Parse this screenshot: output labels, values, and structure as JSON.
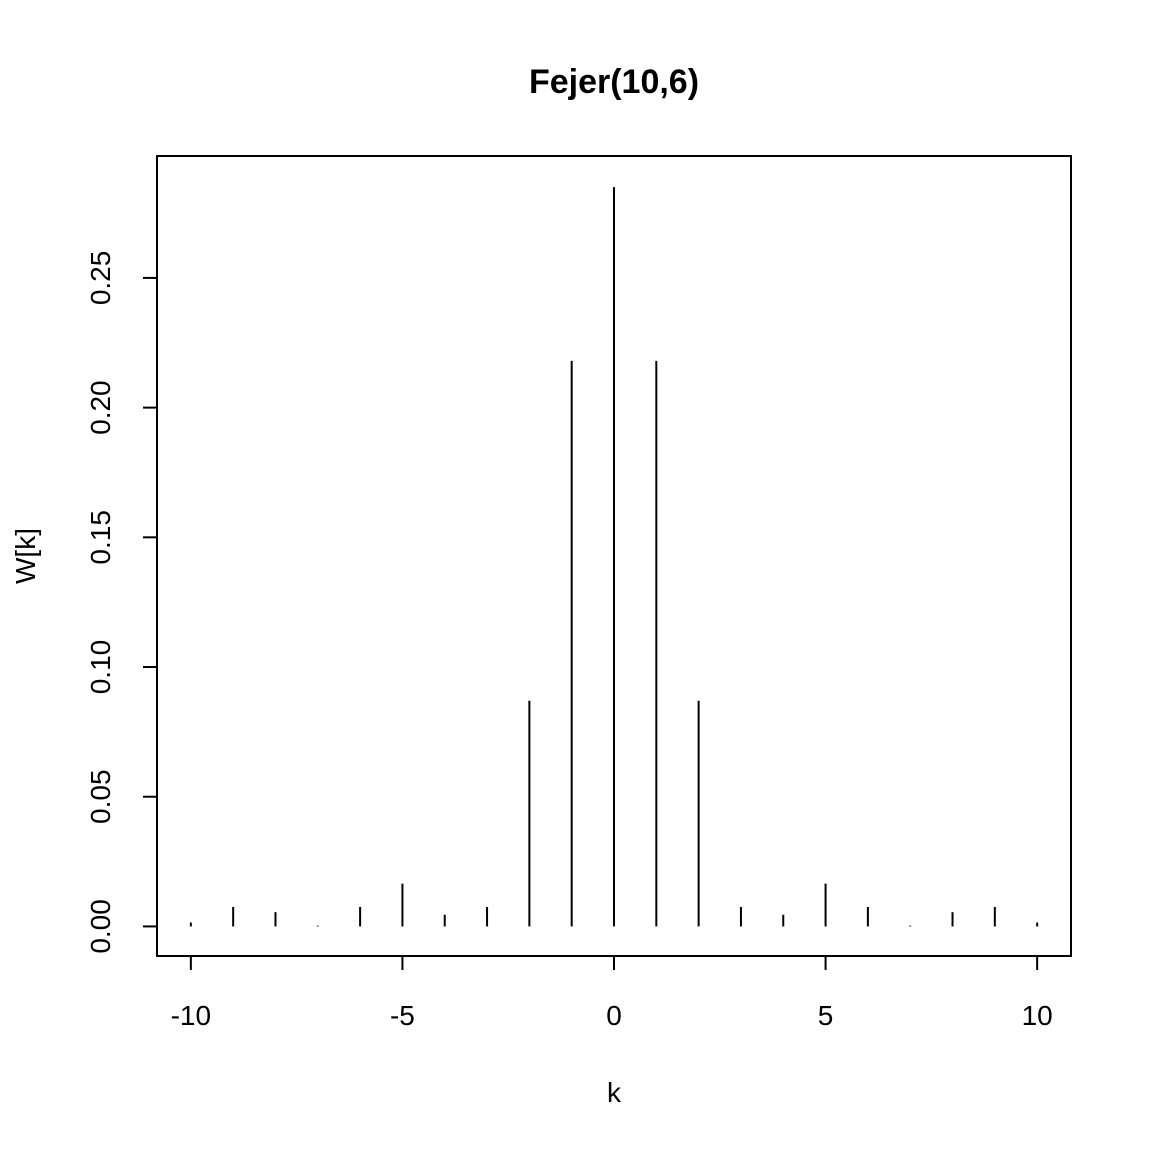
{
  "chart_data": {
    "type": "bar",
    "title": "Fejer(10,6)",
    "xlabel": "k",
    "ylabel": "W[k]",
    "x": [
      -10,
      -9,
      -8,
      -7,
      -6,
      -5,
      -4,
      -3,
      -2,
      -1,
      0,
      1,
      2,
      3,
      4,
      5,
      6,
      7,
      8,
      9,
      10
    ],
    "values": [
      0.0015,
      0.0075,
      0.0055,
      0.0003,
      0.0075,
      0.0165,
      0.0045,
      0.0075,
      0.087,
      0.218,
      0.285,
      0.218,
      0.087,
      0.0075,
      0.0045,
      0.0165,
      0.0075,
      0.0003,
      0.0055,
      0.0075,
      0.0015
    ],
    "xlim": [
      -10.8,
      10.8
    ],
    "ylim": [
      -0.0114,
      0.297
    ],
    "x_ticks": [
      -10,
      -5,
      0,
      5,
      10
    ],
    "x_tick_labels": [
      "-10",
      "-5",
      "0",
      "5",
      "10"
    ],
    "y_ticks": [
      0.0,
      0.05,
      0.1,
      0.15,
      0.2,
      0.25
    ],
    "y_tick_labels": [
      "0.00",
      "0.05",
      "0.10",
      "0.15",
      "0.20",
      "0.25"
    ],
    "grid": false,
    "colors": {
      "line": "#000000",
      "background": "#ffffff"
    }
  }
}
